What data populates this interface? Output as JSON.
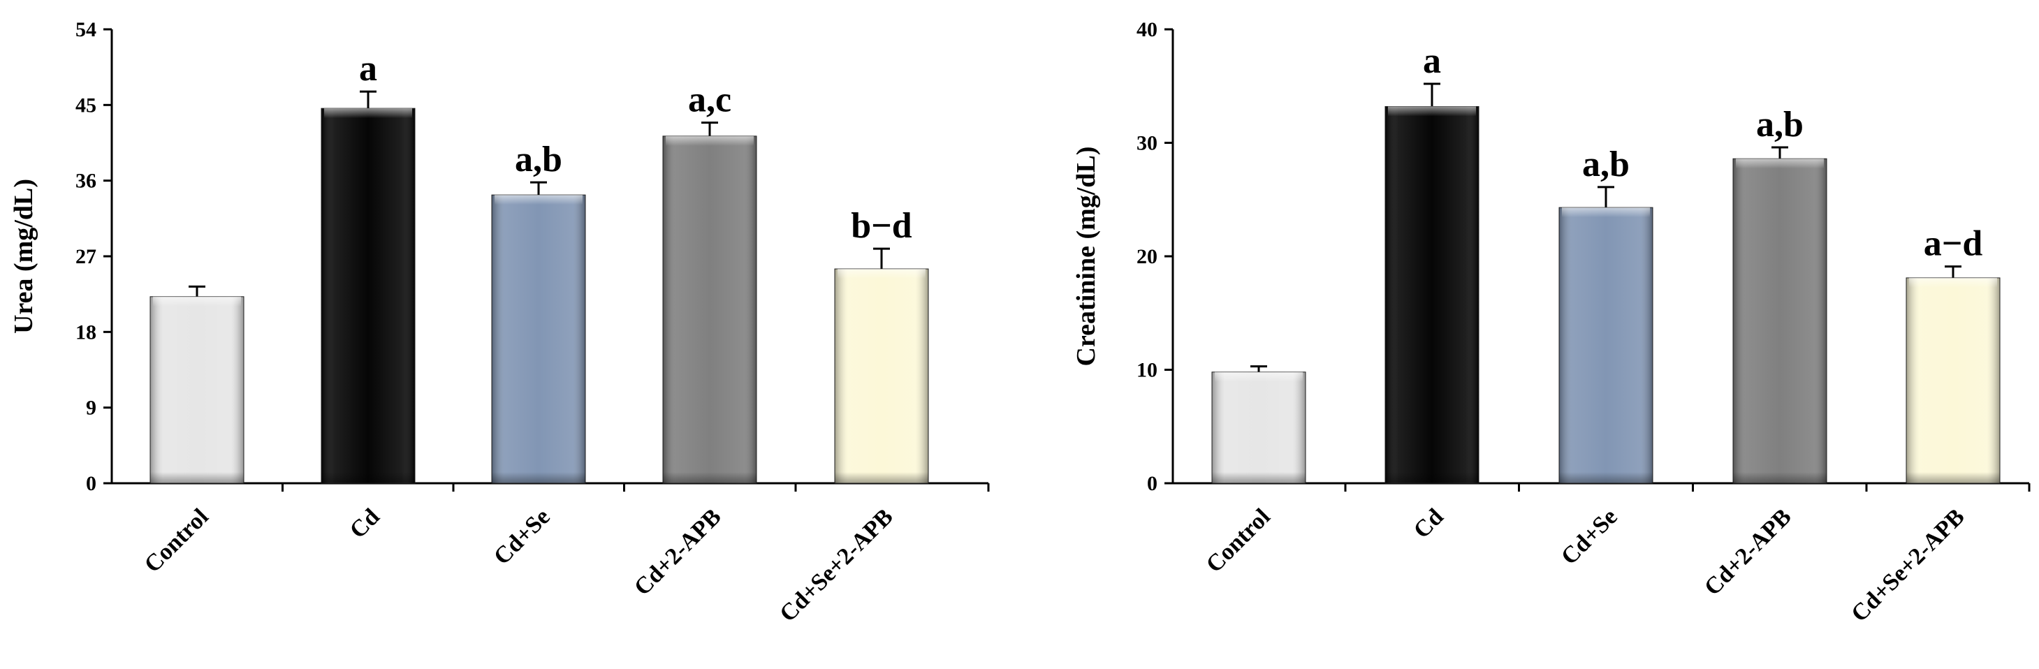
{
  "colors": {
    "axis": "#000000",
    "bar_fills": [
      "#e6e6e6",
      "#060606",
      "#8296b4",
      "#808080",
      "#fcf8d8"
    ]
  },
  "chart_data": [
    {
      "type": "bar",
      "categories": [
        "Control",
        "Cd",
        "Cd+Se",
        "Cd+2-APB",
        "Cd+Se+2-APB"
      ],
      "values": [
        22.2,
        44.6,
        34.3,
        41.3,
        25.5
      ],
      "errors": [
        1.2,
        2.0,
        1.5,
        1.6,
        2.4
      ],
      "significance": [
        "",
        "a",
        "a,b",
        "a,c",
        "b−d"
      ],
      "ylabel": "Urea  (mg/dL)",
      "xlabel": "",
      "ylim": [
        0,
        54
      ],
      "yticks": [
        "0",
        "9",
        "18",
        "27",
        "36",
        "45",
        "54"
      ],
      "grid": false
    },
    {
      "type": "bar",
      "categories": [
        "Control",
        "Cd",
        "Cd+Se",
        "Cd+2-APB",
        "Cd+Se+2-APB"
      ],
      "values": [
        9.8,
        33.2,
        24.3,
        28.6,
        18.1
      ],
      "errors": [
        0.5,
        2.0,
        1.8,
        1.0,
        1.0
      ],
      "significance": [
        "",
        "a",
        "a,b",
        "a,b",
        "a−d"
      ],
      "ylabel": "Creatinine  (mg/dL)",
      "xlabel": "",
      "ylim": [
        0,
        40
      ],
      "yticks": [
        "0",
        "10",
        "20",
        "30",
        "40"
      ],
      "grid": false
    }
  ]
}
